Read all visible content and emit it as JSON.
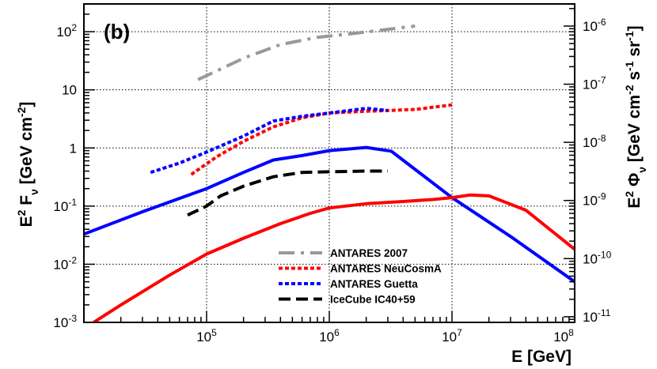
{
  "chart_data": {
    "type": "line",
    "panel_label": "(b)",
    "xlabel": "E  [GeV]",
    "ylabel_left": {
      "base": "E",
      "sup": "2",
      "main": " F",
      "sub": "ν",
      "units_open": "  [GeV cm",
      "units_sup": "-2",
      "units_close": "]"
    },
    "ylabel_right": {
      "base": "E",
      "sup": "2",
      "main": " Φ",
      "sub": "ν",
      "units_open": "  [GeV cm",
      "units_sup1": "-2",
      "units_mid1": " s",
      "units_sup2": "-1",
      "units_mid2": " sr",
      "units_sup3": "-1",
      "units_close": "]"
    },
    "xscale": "log",
    "yscale": "log",
    "xlim": [
      10000,
      100000000
    ],
    "ylim_left": [
      0.001,
      300
    ],
    "ylim_right": [
      8e-12,
      2.4e-06
    ],
    "grid": true,
    "x_ticks": [
      {
        "value": 100000,
        "base": "10",
        "exp": "5"
      },
      {
        "value": 1000000,
        "base": "10",
        "exp": "6"
      },
      {
        "value": 10000000,
        "base": "10",
        "exp": "7"
      },
      {
        "value": 100000000,
        "base": "10",
        "exp": "8"
      }
    ],
    "y_ticks_left": [
      {
        "value": 0.001,
        "base": "10",
        "exp": "-3"
      },
      {
        "value": 0.01,
        "base": "10",
        "exp": "-2"
      },
      {
        "value": 0.1,
        "base": "10",
        "exp": "-1"
      },
      {
        "value": 1,
        "base": "1",
        "exp": ""
      },
      {
        "value": 10,
        "base": "10",
        "exp": ""
      },
      {
        "value": 100,
        "base": "10",
        "exp": "2"
      }
    ],
    "y_ticks_right": [
      {
        "value": 1e-11,
        "base": "10",
        "exp": "-11"
      },
      {
        "value": 1e-10,
        "base": "10",
        "exp": "-10"
      },
      {
        "value": 1e-09,
        "base": "10",
        "exp": "-9"
      },
      {
        "value": 1e-08,
        "base": "10",
        "exp": "-8"
      },
      {
        "value": 1e-07,
        "base": "10",
        "exp": "-7"
      },
      {
        "value": 1e-06,
        "base": "10",
        "exp": "-6"
      }
    ],
    "legend_position": "bottom-center",
    "series": [
      {
        "name": "ANTARES 2007",
        "in_legend": true,
        "color": "#999999",
        "style": "dashdot",
        "x": [
          85000,
          120000,
          200000,
          400000,
          800000,
          1500000,
          3000000,
          5000000
        ],
        "y": [
          15,
          21,
          35,
          60,
          80,
          92,
          110,
          125
        ]
      },
      {
        "name": "ANTARES NeuCosmA",
        "in_legend": true,
        "color": "#ff0000",
        "style": "dotted",
        "x": [
          75000,
          120000,
          200000,
          350000,
          600000,
          1000000,
          2000000,
          3000000,
          5000000,
          10000000
        ],
        "y": [
          0.35,
          0.7,
          1.3,
          2.3,
          3.3,
          4.0,
          4.3,
          4.4,
          4.6,
          5.5
        ]
      },
      {
        "name": "ANTARES Guetta",
        "in_legend": true,
        "color": "#0000ff",
        "style": "dotted",
        "x": [
          35000,
          60000,
          100000,
          200000,
          350000,
          600000,
          1000000,
          2000000,
          3000000
        ],
        "y": [
          0.38,
          0.55,
          0.85,
          1.6,
          2.9,
          3.5,
          4.0,
          4.8,
          4.4
        ]
      },
      {
        "name": "IceCube IC40+59",
        "in_legend": true,
        "color": "#000000",
        "style": "dashed",
        "x": [
          70000,
          100000,
          130000,
          200000,
          350000,
          600000,
          1000000,
          2000000,
          3000000
        ],
        "y": [
          0.07,
          0.1,
          0.15,
          0.22,
          0.32,
          0.38,
          0.39,
          0.4,
          0.4
        ]
      },
      {
        "name": "blue model",
        "in_legend": false,
        "color": "#0000ff",
        "style": "solid",
        "x": [
          10000,
          30000,
          100000,
          200000,
          350000,
          600000,
          1000000,
          2000000,
          3200000,
          10000000,
          30000000,
          100000000
        ],
        "y": [
          0.033,
          0.08,
          0.2,
          0.38,
          0.62,
          0.74,
          0.9,
          1.02,
          0.88,
          0.14,
          0.03,
          0.005
        ]
      },
      {
        "name": "red model",
        "in_legend": false,
        "color": "#ff0000",
        "style": "solid",
        "x": [
          12000,
          20000,
          50000,
          100000,
          200000,
          400000,
          700000,
          1000000,
          2000000,
          4000000,
          7000000,
          10000000,
          14000000,
          20000000,
          40000000,
          100000000
        ],
        "y": [
          0.001,
          0.002,
          0.0065,
          0.015,
          0.028,
          0.05,
          0.075,
          0.093,
          0.11,
          0.12,
          0.13,
          0.14,
          0.155,
          0.15,
          0.085,
          0.018
        ]
      }
    ]
  }
}
